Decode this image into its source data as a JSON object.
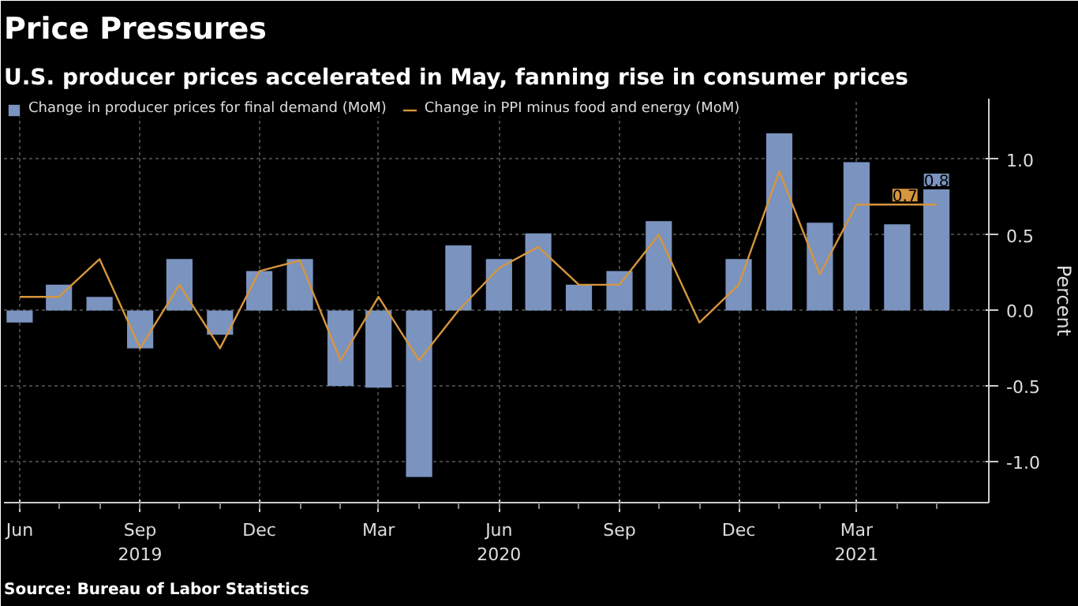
{
  "chart_data": {
    "type": "bar",
    "title": "Price Pressures",
    "subtitle": "U.S. producer prices accelerated in May, fanning rise in consumer prices",
    "x": [
      "2019-06",
      "2019-07",
      "2019-08",
      "2019-09",
      "2019-10",
      "2019-11",
      "2019-12",
      "2020-01",
      "2020-02",
      "2020-03",
      "2020-04",
      "2020-05",
      "2020-06",
      "2020-07",
      "2020-08",
      "2020-09",
      "2020-10",
      "2020-11",
      "2020-12",
      "2021-01",
      "2021-02",
      "2021-03",
      "2021-04",
      "2021-05"
    ],
    "series": [
      {
        "name": "Change in producer prices for final demand (MoM)",
        "type": "bar",
        "color": "#7b93bf",
        "values": [
          -0.08,
          0.17,
          0.09,
          -0.25,
          0.34,
          -0.16,
          0.26,
          0.34,
          -0.5,
          -0.51,
          -1.1,
          0.43,
          0.34,
          0.51,
          0.17,
          0.26,
          0.59,
          null,
          0.34,
          1.17,
          0.58,
          0.98,
          0.57,
          0.8
        ],
        "value_labels": [
          null,
          null,
          null,
          null,
          null,
          null,
          null,
          null,
          null,
          null,
          null,
          null,
          null,
          null,
          null,
          null,
          null,
          null,
          null,
          null,
          null,
          null,
          null,
          "0.8"
        ]
      },
      {
        "name": "Change in PPI minus food and energy (MoM)",
        "type": "line",
        "color": "#d6963e",
        "values": [
          0.09,
          0.09,
          0.34,
          -0.25,
          0.17,
          -0.25,
          0.26,
          0.33,
          -0.33,
          0.09,
          -0.33,
          0.0,
          0.28,
          0.42,
          0.17,
          0.17,
          0.5,
          -0.08,
          0.17,
          0.92,
          0.24,
          0.7,
          0.7,
          0.7
        ],
        "value_labels": [
          null,
          null,
          null,
          null,
          null,
          null,
          null,
          null,
          null,
          null,
          null,
          null,
          null,
          null,
          null,
          null,
          null,
          null,
          null,
          null,
          null,
          null,
          null,
          "0.7"
        ]
      }
    ],
    "xlim": [
      "2019-05-20",
      "2021-06-10"
    ],
    "xticks": [
      {
        "value": "2019-06",
        "label": "Jun"
      },
      {
        "value": "2019-09",
        "label": "Sep\n2019"
      },
      {
        "value": "2019-12",
        "label": "Dec"
      },
      {
        "value": "2020-03",
        "label": "Mar"
      },
      {
        "value": "2020-06",
        "label": "Jun\n2020"
      },
      {
        "value": "2020-09",
        "label": "Sep"
      },
      {
        "value": "2020-12",
        "label": "Dec"
      },
      {
        "value": "2021-03",
        "label": "Mar\n2021"
      }
    ],
    "ylim": [
      -1.27,
      1.4
    ],
    "yticks": [
      {
        "value": -1.0,
        "label": "-1.0"
      },
      {
        "value": -0.5,
        "label": "-0.5"
      },
      {
        "value": 0.0,
        "label": "0.0"
      },
      {
        "value": 0.5,
        "label": "0.5"
      },
      {
        "value": 1.0,
        "label": "1.0"
      }
    ],
    "ylabel": "Percent",
    "grid": true,
    "legend": "top left",
    "annotations": [
      "Source: Bureau of Labor Statistics"
    ]
  }
}
